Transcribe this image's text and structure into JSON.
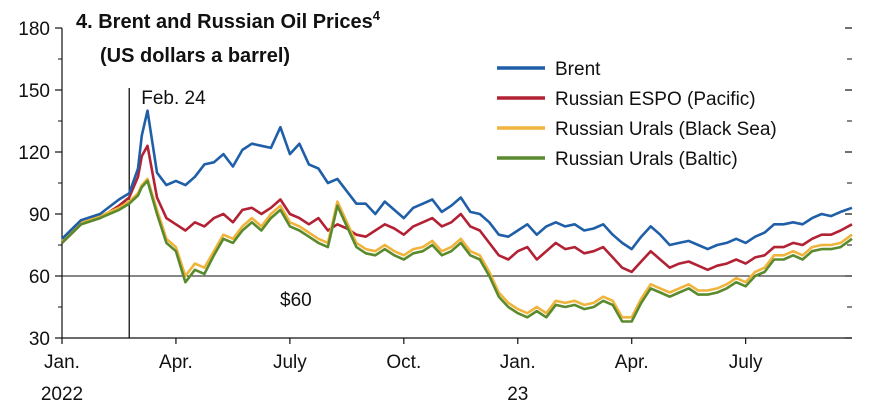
{
  "chart_data": {
    "type": "line",
    "title": "4. Brent and Russian Oil Prices",
    "title_superscript": "4",
    "subtitle": "(US dollars a barrel)",
    "xlabel": "",
    "ylabel": "",
    "ylim": [
      30,
      180
    ],
    "yticks": [
      30,
      60,
      90,
      120,
      150,
      180
    ],
    "y_minor_ticks": [
      45,
      75,
      105,
      135,
      165
    ],
    "x_unit": "months since Jan. 1, 2022",
    "xlim": [
      0,
      20.8
    ],
    "xticks": [
      {
        "x": 0,
        "label": "Jan.",
        "sublabel": "2022"
      },
      {
        "x": 3,
        "label": "Apr.",
        "sublabel": ""
      },
      {
        "x": 6,
        "label": "July",
        "sublabel": ""
      },
      {
        "x": 9,
        "label": "Oct.",
        "sublabel": ""
      },
      {
        "x": 12,
        "label": "Jan.",
        "sublabel": "23"
      },
      {
        "x": 15,
        "label": "Apr.",
        "sublabel": ""
      },
      {
        "x": 18,
        "label": "July",
        "sublabel": ""
      }
    ],
    "annotations": [
      {
        "type": "vline",
        "x": 1.77,
        "label": "Feb. 24"
      },
      {
        "type": "hline",
        "y": 60,
        "label": "$60"
      }
    ],
    "legend": {
      "position": "top-right"
    },
    "series": [
      {
        "name": "Brent",
        "color": "#1f5fa8",
        "x": [
          0,
          0.5,
          1.0,
          1.5,
          1.77,
          2.0,
          2.1,
          2.25,
          2.5,
          2.75,
          3.0,
          3.25,
          3.5,
          3.75,
          4.0,
          4.25,
          4.5,
          4.75,
          5.0,
          5.25,
          5.5,
          5.75,
          6.0,
          6.25,
          6.5,
          6.75,
          7.0,
          7.25,
          7.5,
          7.75,
          8.0,
          8.25,
          8.5,
          8.75,
          9.0,
          9.25,
          9.5,
          9.75,
          10.0,
          10.25,
          10.5,
          10.75,
          11.0,
          11.25,
          11.5,
          11.75,
          12.0,
          12.25,
          12.5,
          12.75,
          13.0,
          13.25,
          13.5,
          13.75,
          14.0,
          14.25,
          14.5,
          14.75,
          15.0,
          15.25,
          15.5,
          15.75,
          16.0,
          16.25,
          16.5,
          16.75,
          17.0,
          17.25,
          17.5,
          17.75,
          18.0,
          18.25,
          18.5,
          18.75,
          19.0,
          19.25,
          19.5,
          19.75,
          20.0,
          20.25,
          20.5,
          20.8
        ],
        "values": [
          78,
          87,
          90,
          97,
          100,
          112,
          128,
          140,
          110,
          104,
          106,
          104,
          108,
          114,
          115,
          119,
          113,
          121,
          124,
          123,
          122,
          132,
          119,
          124,
          114,
          112,
          105,
          107,
          101,
          95,
          95,
          90,
          96,
          92,
          88,
          93,
          95,
          97,
          91,
          94,
          98,
          91,
          90,
          86,
          80,
          79,
          82,
          85,
          80,
          84,
          86,
          84,
          85,
          82,
          83,
          85,
          80,
          76,
          73,
          79,
          84,
          80,
          75,
          76,
          77,
          75,
          73,
          75,
          76,
          78,
          76,
          79,
          81,
          85,
          85,
          86,
          85,
          88,
          90,
          89,
          91,
          93
        ]
      },
      {
        "name": "Russian ESPO (Pacific)",
        "color": "#b22234",
        "x": [
          0,
          0.5,
          1.0,
          1.5,
          1.77,
          2.0,
          2.1,
          2.25,
          2.5,
          2.75,
          3.0,
          3.25,
          3.5,
          3.75,
          4.0,
          4.25,
          4.5,
          4.75,
          5.0,
          5.25,
          5.5,
          5.75,
          6.0,
          6.25,
          6.5,
          6.75,
          7.0,
          7.25,
          7.5,
          7.75,
          8.0,
          8.25,
          8.5,
          8.75,
          9.0,
          9.25,
          9.5,
          9.75,
          10.0,
          10.25,
          10.5,
          10.75,
          11.0,
          11.25,
          11.5,
          11.75,
          12.0,
          12.25,
          12.5,
          12.75,
          13.0,
          13.25,
          13.5,
          13.75,
          14.0,
          14.25,
          14.5,
          14.75,
          15.0,
          15.25,
          15.5,
          15.75,
          16.0,
          16.25,
          16.5,
          16.75,
          17.0,
          17.25,
          17.5,
          17.75,
          18.0,
          18.25,
          18.5,
          18.75,
          19.0,
          19.25,
          19.5,
          19.75,
          20.0,
          20.25,
          20.5,
          20.8
        ],
        "values": [
          76,
          85,
          88,
          94,
          98,
          108,
          118,
          123,
          98,
          88,
          85,
          82,
          86,
          84,
          88,
          90,
          86,
          92,
          93,
          90,
          93,
          97,
          90,
          88,
          85,
          88,
          82,
          85,
          83,
          80,
          79,
          82,
          85,
          83,
          80,
          84,
          86,
          88,
          84,
          86,
          90,
          84,
          82,
          76,
          70,
          68,
          72,
          74,
          68,
          72,
          76,
          73,
          74,
          71,
          72,
          74,
          69,
          64,
          62,
          67,
          72,
          68,
          64,
          66,
          67,
          65,
          63,
          65,
          66,
          68,
          66,
          69,
          70,
          74,
          74,
          76,
          75,
          78,
          80,
          80,
          82,
          85
        ]
      },
      {
        "name": "Russian Urals (Black Sea)",
        "color": "#f0b43c",
        "x": [
          0,
          0.5,
          1.0,
          1.5,
          1.77,
          2.0,
          2.1,
          2.25,
          2.5,
          2.75,
          3.0,
          3.25,
          3.5,
          3.75,
          4.0,
          4.25,
          4.5,
          4.75,
          5.0,
          5.25,
          5.5,
          5.75,
          6.0,
          6.25,
          6.5,
          6.75,
          7.0,
          7.25,
          7.5,
          7.75,
          8.0,
          8.25,
          8.5,
          8.75,
          9.0,
          9.25,
          9.5,
          9.75,
          10.0,
          10.25,
          10.5,
          10.75,
          11.0,
          11.25,
          11.5,
          11.75,
          12.0,
          12.25,
          12.5,
          12.75,
          13.0,
          13.25,
          13.5,
          13.75,
          14.0,
          14.25,
          14.5,
          14.75,
          15.0,
          15.25,
          15.5,
          15.75,
          16.0,
          16.25,
          16.5,
          16.75,
          17.0,
          17.25,
          17.5,
          17.75,
          18.0,
          18.25,
          18.5,
          18.75,
          19.0,
          19.25,
          19.5,
          19.75,
          20.0,
          20.25,
          20.5,
          20.8
        ],
        "values": [
          77,
          86,
          89,
          93,
          96,
          100,
          104,
          107,
          92,
          78,
          74,
          60,
          66,
          64,
          72,
          80,
          78,
          84,
          88,
          84,
          90,
          94,
          86,
          84,
          81,
          78,
          76,
          96,
          86,
          76,
          73,
          72,
          75,
          72,
          70,
          73,
          74,
          77,
          72,
          74,
          78,
          72,
          70,
          62,
          52,
          47,
          44,
          42,
          45,
          42,
          48,
          47,
          48,
          46,
          47,
          50,
          48,
          40,
          40,
          49,
          56,
          54,
          52,
          54,
          56,
          53,
          53,
          54,
          56,
          59,
          57,
          62,
          64,
          70,
          70,
          72,
          70,
          74,
          75,
          75,
          76,
          80
        ]
      },
      {
        "name": "Russian Urals (Baltic)",
        "color": "#5a8a2e",
        "x": [
          0,
          0.5,
          1.0,
          1.5,
          1.77,
          2.0,
          2.1,
          2.25,
          2.5,
          2.75,
          3.0,
          3.25,
          3.5,
          3.75,
          4.0,
          4.25,
          4.5,
          4.75,
          5.0,
          5.25,
          5.5,
          5.75,
          6.0,
          6.25,
          6.5,
          6.75,
          7.0,
          7.25,
          7.5,
          7.75,
          8.0,
          8.25,
          8.5,
          8.75,
          9.0,
          9.25,
          9.5,
          9.75,
          10.0,
          10.25,
          10.5,
          10.75,
          11.0,
          11.25,
          11.5,
          11.75,
          12.0,
          12.25,
          12.5,
          12.75,
          13.0,
          13.25,
          13.5,
          13.75,
          14.0,
          14.25,
          14.5,
          14.75,
          15.0,
          15.25,
          15.5,
          15.75,
          16.0,
          16.25,
          16.5,
          16.75,
          17.0,
          17.25,
          17.5,
          17.75,
          18.0,
          18.25,
          18.5,
          18.75,
          19.0,
          19.25,
          19.5,
          19.75,
          20.0,
          20.25,
          20.5,
          20.8
        ],
        "values": [
          76,
          85,
          88,
          92,
          95,
          99,
          103,
          106,
          90,
          76,
          72,
          57,
          63,
          61,
          70,
          78,
          76,
          82,
          86,
          82,
          88,
          92,
          84,
          82,
          79,
          76,
          74,
          94,
          84,
          74,
          71,
          70,
          73,
          70,
          68,
          71,
          72,
          75,
          70,
          72,
          76,
          70,
          68,
          60,
          50,
          45,
          42,
          40,
          43,
          40,
          46,
          45,
          46,
          44,
          45,
          48,
          46,
          38,
          38,
          47,
          54,
          52,
          50,
          52,
          54,
          51,
          51,
          52,
          54,
          57,
          55,
          60,
          62,
          68,
          68,
          70,
          68,
          72,
          73,
          73,
          74,
          78
        ]
      }
    ]
  }
}
